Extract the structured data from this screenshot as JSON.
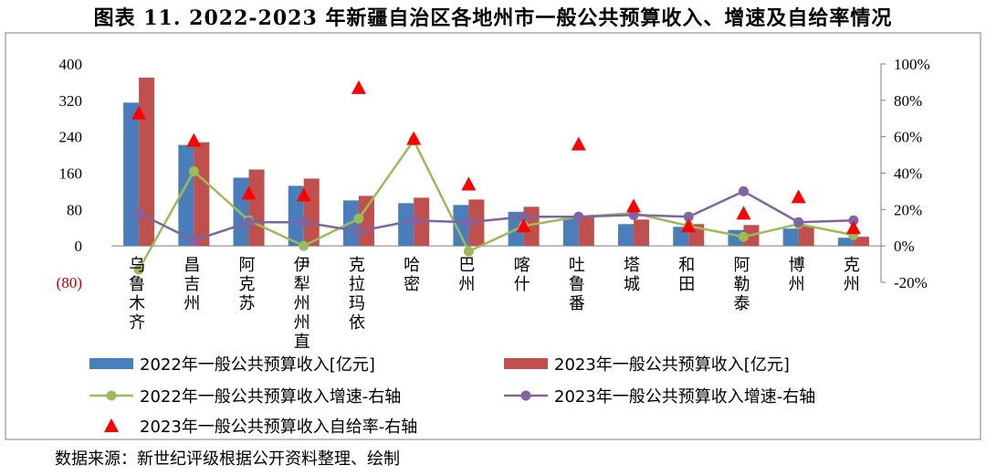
{
  "title": "图表 11. 2022-2023 年新疆自治区各地州市一般公共预算收入、增速及自给率情况",
  "source": "数据来源：新世纪评级根据公开资料整理、绘制",
  "colors": {
    "bar2022": "#4a7ebb",
    "bar2023": "#c0504d",
    "growth2022": "#9bbb59",
    "growth2023": "#8064a2",
    "ratio2023": "#ff0000",
    "negative_tick": "#c00000"
  },
  "chart_data": {
    "type": "bar",
    "title": "",
    "xlabel": "",
    "ylabel": "",
    "ylim": [
      -80,
      400
    ],
    "y2lim": [
      -20,
      100
    ],
    "yticks": [
      "(80)",
      "0",
      "80",
      "160",
      "240",
      "320",
      "400"
    ],
    "y2ticks": [
      "-20%",
      "0%",
      "20%",
      "40%",
      "60%",
      "80%",
      "100%"
    ],
    "categories": [
      "乌鲁木齐",
      "昌吉州",
      "阿克苏",
      "伊犁州州直",
      "克拉玛依",
      "哈密",
      "巴州",
      "喀什",
      "吐鲁番",
      "塔城",
      "和田",
      "阿勒泰",
      "博州",
      "克州"
    ],
    "series": [
      {
        "name": "2022年一般公共预算收入[亿元]",
        "kind": "bar",
        "axis": "left",
        "values": [
          315,
          222,
          150,
          132,
          100,
          94,
          90,
          75,
          60,
          48,
          42,
          35,
          38,
          18
        ]
      },
      {
        "name": "2023年一般公共预算收入[亿元]",
        "kind": "bar",
        "axis": "left",
        "values": [
          370,
          228,
          168,
          148,
          110,
          106,
          102,
          86,
          66,
          58,
          48,
          46,
          44,
          20
        ]
      },
      {
        "name": "2022年一般公共预算收入增速-右轴",
        "kind": "line",
        "axis": "right",
        "values": [
          -13,
          41,
          14,
          0,
          15,
          58,
          -3,
          11,
          16,
          18,
          11,
          5,
          12,
          6
        ]
      },
      {
        "name": "2023年一般公共预算收入增速-右轴",
        "kind": "line",
        "axis": "right",
        "values": [
          18,
          3,
          13,
          13,
          8,
          14,
          13,
          16,
          16,
          17,
          16,
          30,
          13,
          14
        ]
      },
      {
        "name": "2023年一般公共预算收入自给率-右轴",
        "kind": "marker",
        "axis": "right",
        "values": [
          73,
          58,
          29,
          28,
          87,
          59,
          34,
          11,
          56,
          22,
          11,
          18,
          27,
          10
        ]
      }
    ],
    "legend": [
      "2022年一般公共预算收入[亿元]",
      "2023年一般公共预算收入[亿元]",
      "2022年一般公共预算收入增速-右轴",
      "2023年一般公共预算收入增速-右轴",
      "2023年一般公共预算收入自给率-右轴"
    ],
    "legend_position": "bottom",
    "grid": false
  }
}
